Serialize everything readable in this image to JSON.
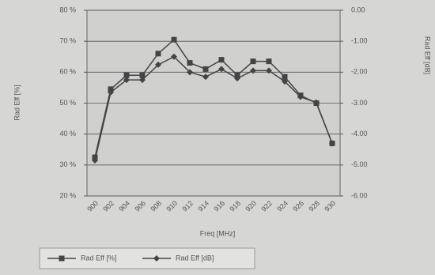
{
  "chart_data": {
    "type": "line",
    "x_label": "Freq [MHz]",
    "y_label": "Rad Eff [%]",
    "y2_label": "Rad Eff [dB]",
    "categories": [
      "900",
      "902",
      "904",
      "906",
      "908",
      "910",
      "912",
      "914",
      "916",
      "918",
      "920",
      "922",
      "924",
      "926",
      "928",
      "930"
    ],
    "series": [
      {
        "name": "Rad Eff [%]",
        "color": "#444444",
        "marker": "square",
        "values": [
          32.5,
          54.5,
          59,
          59,
          66,
          70.5,
          63,
          61,
          64,
          59,
          63.5,
          63.5,
          58.5,
          52.5,
          50,
          37
        ]
      },
      {
        "name": "Rad Eff [dB]",
        "color": "#444444",
        "marker": "diamond",
        "axis": "y2",
        "values": [
          -4.85,
          -2.65,
          -2.25,
          -2.25,
          -1.76,
          -1.5,
          -2.0,
          -2.15,
          -1.9,
          -2.2,
          -1.95,
          -1.95,
          -2.3,
          -2.8,
          -2.98,
          -4.3
        ]
      }
    ],
    "ylim": [
      20,
      80
    ],
    "yticks": [
      {
        "value": 20,
        "label": "20 %"
      },
      {
        "value": 30,
        "label": "30 %"
      },
      {
        "value": 40,
        "label": "40 %"
      },
      {
        "value": 50,
        "label": "50 %"
      },
      {
        "value": 60,
        "label": "60 %"
      },
      {
        "value": 70,
        "label": "70 %"
      },
      {
        "value": 80,
        "label": "80 %"
      }
    ],
    "y2lim": [
      -6,
      0
    ],
    "y2ticks": [
      {
        "value": -6,
        "label": "-6.00"
      },
      {
        "value": -5,
        "label": "-5.00"
      },
      {
        "value": -4,
        "label": "-4.00"
      },
      {
        "value": -3,
        "label": "-3.00"
      },
      {
        "value": -2,
        "label": "-2.00"
      },
      {
        "value": -1,
        "label": "-1.00"
      },
      {
        "value": 0,
        "label": "0.00"
      }
    ],
    "grid": true,
    "legend": "bottom"
  }
}
